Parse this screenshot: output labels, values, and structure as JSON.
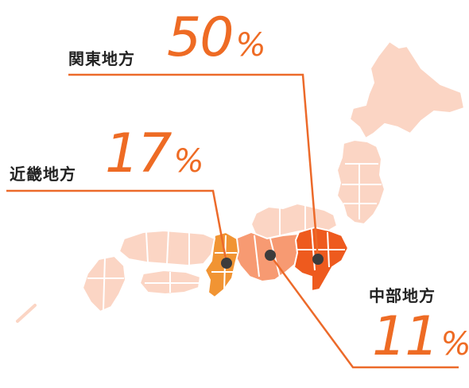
{
  "regions": {
    "kanto": {
      "name": "関東地方",
      "value": "50",
      "unit": "%"
    },
    "kinki": {
      "name": "近畿地方",
      "value": "17",
      "unit": "%"
    },
    "chubu": {
      "name": "中部地方",
      "value": "11",
      "unit": "%"
    }
  },
  "colors": {
    "accent": "#ee6b24",
    "base_prefecture": "#fbd5c4",
    "chubu_fill": "#f79a72",
    "kanto_fill": "#ee5a1e",
    "kinki_fill": "#f19433",
    "marker": "#3c3c3c",
    "leader_line": "#ec6a2a"
  },
  "icons": {
    "marker": "location-dot-icon"
  }
}
